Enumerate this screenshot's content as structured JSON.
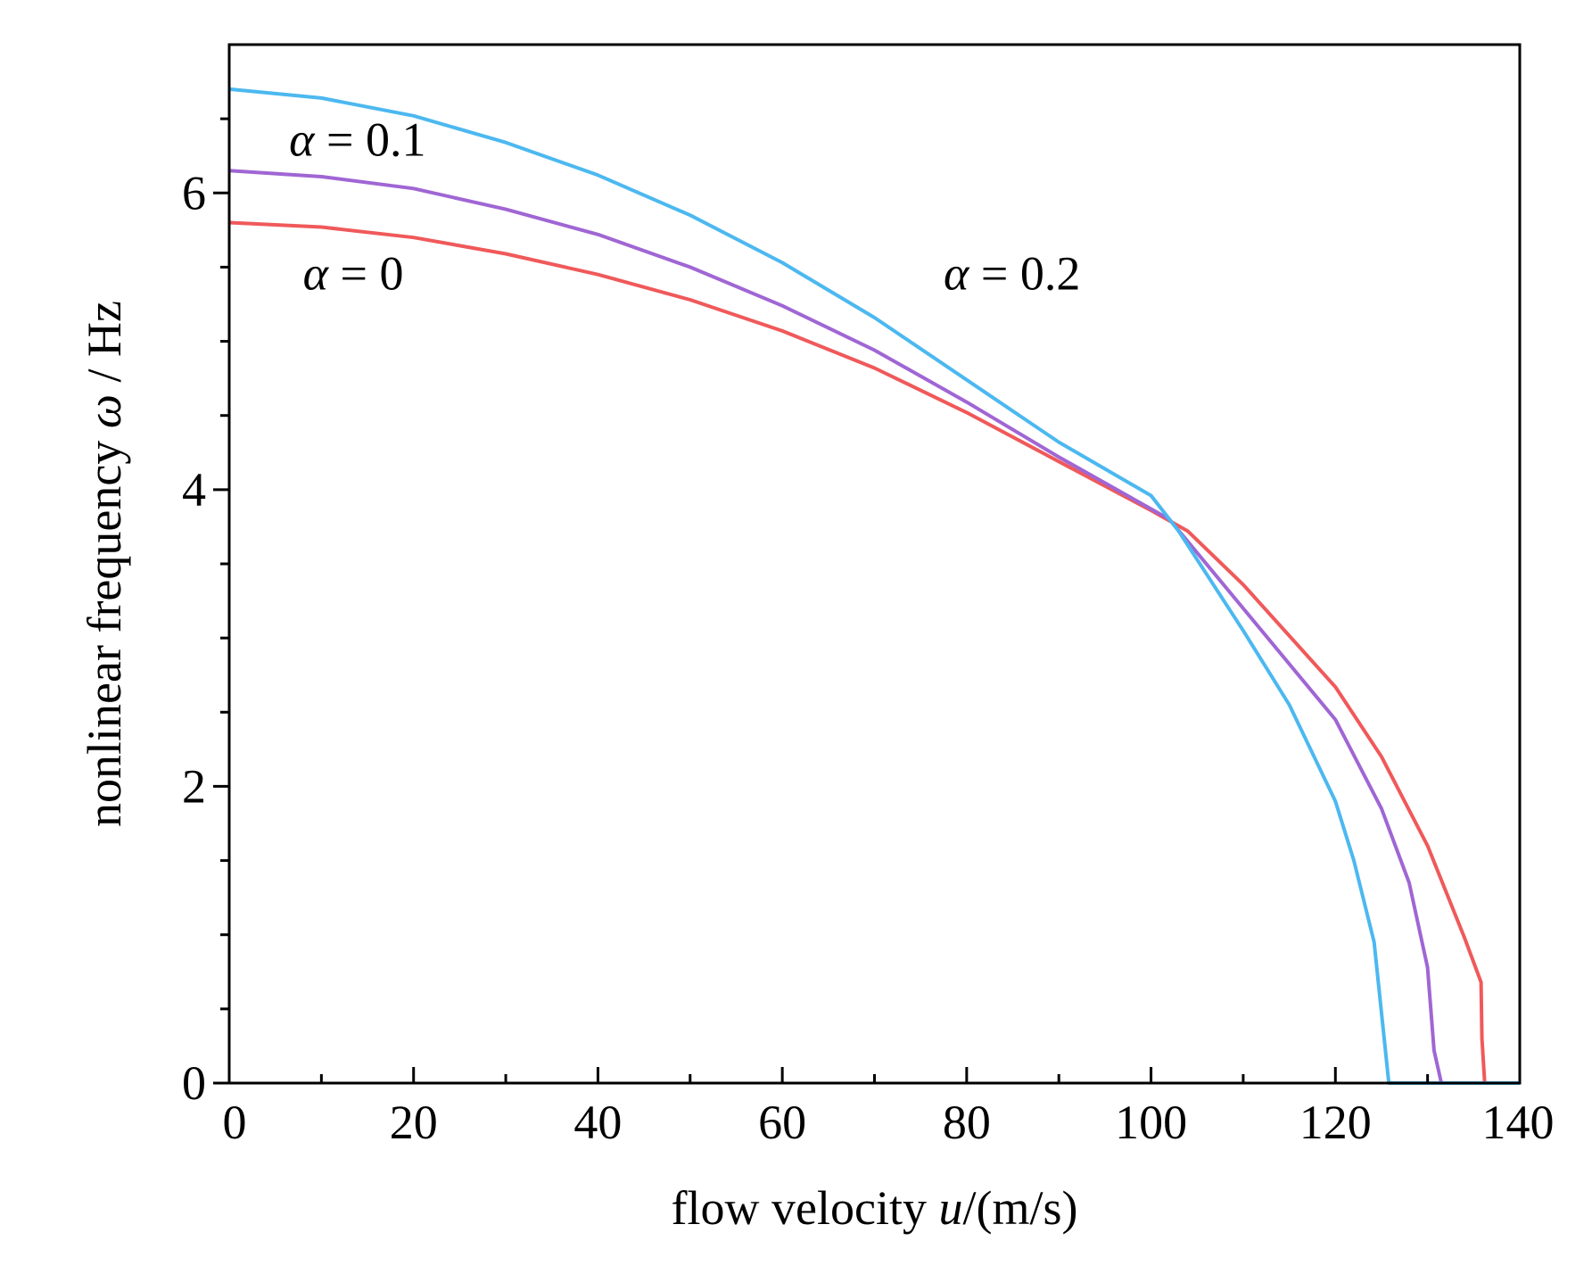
{
  "chart_data": {
    "type": "line",
    "xlabel": {
      "pre": "flow velocity ",
      "var": "u",
      "post": "/(m/s)"
    },
    "ylabel": {
      "pre": "nonlinear frequency ",
      "var": "ω",
      "post": " / Hz"
    },
    "xlim": [
      0,
      140
    ],
    "ylim": [
      0,
      7
    ],
    "x_ticks": [
      0,
      20,
      40,
      60,
      80,
      100,
      120,
      140
    ],
    "x_minor_ticks": [
      10,
      30,
      50,
      70,
      90,
      110,
      130
    ],
    "y_ticks": [
      0,
      2,
      4,
      6
    ],
    "y_minor_ticks": [
      0.5,
      1,
      1.5,
      2.5,
      3,
      3.5,
      4.5,
      5,
      5.5,
      6.5
    ],
    "grid": false,
    "legend": "none",
    "series": [
      {
        "name": "α = 0",
        "color": "#f0595a",
        "points": [
          [
            0,
            5.8
          ],
          [
            10,
            5.77
          ],
          [
            20,
            5.7
          ],
          [
            30,
            5.59
          ],
          [
            40,
            5.45
          ],
          [
            50,
            5.28
          ],
          [
            60,
            5.07
          ],
          [
            70,
            4.82
          ],
          [
            80,
            4.52
          ],
          [
            90,
            4.19
          ],
          [
            100,
            3.86
          ],
          [
            104,
            3.72
          ],
          [
            110,
            3.36
          ],
          [
            120,
            2.67
          ],
          [
            125,
            2.2
          ],
          [
            130,
            1.6
          ],
          [
            134,
            0.98
          ],
          [
            135.8,
            0.68
          ],
          [
            135.9,
            0.3
          ],
          [
            136.2,
            0.0
          ],
          [
            140,
            0.0
          ]
        ]
      },
      {
        "name": "α = 0.1",
        "color": "#a066d4",
        "points": [
          [
            0,
            6.15
          ],
          [
            10,
            6.11
          ],
          [
            20,
            6.03
          ],
          [
            30,
            5.89
          ],
          [
            40,
            5.72
          ],
          [
            50,
            5.5
          ],
          [
            60,
            5.24
          ],
          [
            70,
            4.94
          ],
          [
            80,
            4.59
          ],
          [
            90,
            4.22
          ],
          [
            100,
            3.87
          ],
          [
            102,
            3.8
          ],
          [
            110,
            3.2
          ],
          [
            120,
            2.45
          ],
          [
            125,
            1.85
          ],
          [
            128,
            1.35
          ],
          [
            130,
            0.78
          ],
          [
            130.7,
            0.22
          ],
          [
            131.5,
            0.0
          ],
          [
            140,
            0.0
          ]
        ]
      },
      {
        "name": "α = 0.2",
        "color": "#4cb8f0",
        "points": [
          [
            0,
            6.7
          ],
          [
            10,
            6.64
          ],
          [
            20,
            6.52
          ],
          [
            30,
            6.34
          ],
          [
            40,
            6.12
          ],
          [
            50,
            5.85
          ],
          [
            60,
            5.53
          ],
          [
            70,
            5.16
          ],
          [
            80,
            4.74
          ],
          [
            90,
            4.32
          ],
          [
            100,
            3.96
          ],
          [
            103,
            3.72
          ],
          [
            110,
            3.05
          ],
          [
            115,
            2.55
          ],
          [
            120,
            1.9
          ],
          [
            122,
            1.5
          ],
          [
            124.2,
            0.95
          ],
          [
            125.8,
            0.0
          ],
          [
            140,
            0.0
          ]
        ]
      }
    ],
    "annotations": [
      {
        "text": "α = 0.1",
        "x": 6.5,
        "y": 6.25
      },
      {
        "text": "α = 0",
        "x": 8.0,
        "y": 5.35
      },
      {
        "text": "α = 0.2",
        "x": 77.5,
        "y": 5.35
      }
    ]
  }
}
